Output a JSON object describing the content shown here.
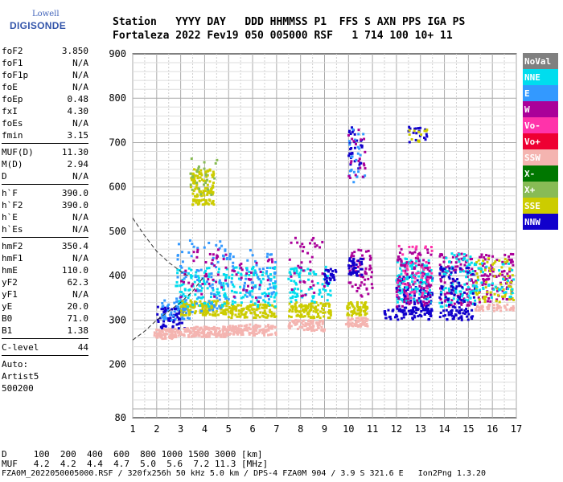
{
  "logo": {
    "line1": "Lowell",
    "line2": "DIGISONDE"
  },
  "header": {
    "line1": "Station   YYYY DAY   DDD HHMMSS P1  FFS S AXN PPS IGA PS",
    "line2": "Fortaleza 2022 Fev19 050 005000 RSF   1 714 100 10+ 11"
  },
  "params": [
    [
      {
        "k": "foF2",
        "v": "3.850"
      },
      {
        "k": "foF1",
        "v": "N/A"
      },
      {
        "k": "foF1p",
        "v": "N/A"
      },
      {
        "k": "foE",
        "v": "N/A"
      },
      {
        "k": "foEp",
        "v": "0.48"
      },
      {
        "k": "fxI",
        "v": "4.30"
      },
      {
        "k": "foEs",
        "v": "N/A"
      },
      {
        "k": "fmin",
        "v": "3.15"
      }
    ],
    [
      {
        "k": "MUF(D)",
        "v": "11.30"
      },
      {
        "k": "M(D)",
        "v": "2.94"
      },
      {
        "k": "D",
        "v": "N/A"
      }
    ],
    [
      {
        "k": "h`F",
        "v": "390.0"
      },
      {
        "k": "h`F2",
        "v": "390.0"
      },
      {
        "k": "h`E",
        "v": "N/A"
      },
      {
        "k": "h`Es",
        "v": "N/A"
      }
    ],
    [
      {
        "k": "hmF2",
        "v": "350.4"
      },
      {
        "k": "hmF1",
        "v": "N/A"
      },
      {
        "k": "hmE",
        "v": "110.0"
      },
      {
        "k": "yF2",
        "v": "62.3"
      },
      {
        "k": "yF1",
        "v": "N/A"
      },
      {
        "k": "yE",
        "v": "20.0"
      },
      {
        "k": "B0",
        "v": "71.0"
      },
      {
        "k": "B1",
        "v": "1.38"
      }
    ],
    [
      {
        "k": "C-level",
        "v": "44"
      }
    ]
  ],
  "auto": {
    "line1": "Auto:",
    "line2": "Artist5",
    "line3": "500200"
  },
  "bottom": {
    "d_line": "D     100  200  400  600  800 1000 1500 3000 [km]",
    "muf_line": "MUF   4.2  4.2  4.4  4.7  5.0  5.6  7.2 11.3 [MHz]"
  },
  "footer": "FZA0M_2022050005000.RSF / 320fx256h 50 kHz 5.0 km / DPS-4 FZA0M 904 / 3.9 S 321.6 E   Ion2Png 1.3.20",
  "legend": [
    {
      "label": "NoVal",
      "color": "#808080"
    },
    {
      "label": "NNE",
      "color": "#00ddee"
    },
    {
      "label": "E",
      "color": "#3399ff"
    },
    {
      "label": "W",
      "color": "#aa0099"
    },
    {
      "label": "Vo-",
      "color": "#ff33aa"
    },
    {
      "label": "Vo+",
      "color": "#ee0033"
    },
    {
      "label": "SSW",
      "color": "#f4b4b0"
    },
    {
      "label": "X-",
      "color": "#007700"
    },
    {
      "label": "X+",
      "color": "#88bb55"
    },
    {
      "label": "SSE",
      "color": "#cccc00"
    },
    {
      "label": "NNW",
      "color": "#1100cc"
    }
  ],
  "chart_data": {
    "type": "scatter",
    "title": "",
    "xlabel": "",
    "ylabel": "",
    "xlim": [
      1,
      17
    ],
    "ylim": [
      80,
      900
    ],
    "xticks": [
      1,
      2,
      3,
      4,
      5,
      6,
      7,
      8,
      9,
      10,
      11,
      12,
      13,
      14,
      15,
      16,
      17
    ],
    "yticks": [
      80,
      200,
      300,
      400,
      500,
      600,
      700,
      800,
      900
    ],
    "grid": true,
    "legend_position": "right",
    "trace_curve": [
      [
        1.0,
        530
      ],
      [
        1.5,
        490
      ],
      [
        2.0,
        455
      ],
      [
        2.5,
        430
      ],
      [
        3.0,
        410
      ],
      [
        3.3,
        400
      ]
    ],
    "lower_curve": [
      [
        1.0,
        255
      ],
      [
        1.5,
        275
      ],
      [
        2.0,
        300
      ],
      [
        2.5,
        320
      ],
      [
        3.0,
        340
      ],
      [
        3.5,
        365
      ],
      [
        4.0,
        400
      ]
    ],
    "clusters": [
      {
        "x": [
          1.9,
          3.0
        ],
        "y": [
          258,
          280
        ],
        "series": "SSW",
        "n": 90
      },
      {
        "x": [
          2.0,
          3.2
        ],
        "y": [
          280,
          330
        ],
        "series": "NNW",
        "n": 60
      },
      {
        "x": [
          2.2,
          3.5
        ],
        "y": [
          300,
          345
        ],
        "series": "E",
        "n": 50
      },
      {
        "x": [
          3.0,
          5.0
        ],
        "y": [
          262,
          285
        ],
        "series": "SSW",
        "n": 160
      },
      {
        "x": [
          3.0,
          5.0
        ],
        "y": [
          310,
          345
        ],
        "series": "SSE",
        "n": 140
      },
      {
        "x": [
          2.8,
          5.0
        ],
        "y": [
          330,
          420
        ],
        "series": "NNE",
        "n": 110
      },
      {
        "x": [
          2.8,
          5.0
        ],
        "y": [
          320,
          480
        ],
        "series": "E",
        "n": 90
      },
      {
        "x": [
          3.0,
          4.9
        ],
        "y": [
          350,
          470
        ],
        "series": "W",
        "n": 40
      },
      {
        "x": [
          3.4,
          4.4
        ],
        "y": [
          560,
          640
        ],
        "series": "SSE",
        "n": 130
      },
      {
        "x": [
          3.4,
          4.6
        ],
        "y": [
          580,
          665
        ],
        "series": "X+",
        "n": 25
      },
      {
        "x": [
          5.0,
          7.0
        ],
        "y": [
          265,
          290
        ],
        "series": "SSW",
        "n": 120
      },
      {
        "x": [
          5.0,
          7.0
        ],
        "y": [
          305,
          335
        ],
        "series": "SSE",
        "n": 120
      },
      {
        "x": [
          5.0,
          7.0
        ],
        "y": [
          330,
          420
        ],
        "series": "NNE",
        "n": 90
      },
      {
        "x": [
          5.0,
          7.0
        ],
        "y": [
          340,
          460
        ],
        "series": "E",
        "n": 60
      },
      {
        "x": [
          5.1,
          6.9
        ],
        "y": [
          340,
          440
        ],
        "series": "W",
        "n": 30
      },
      {
        "x": [
          7.5,
          9.0
        ],
        "y": [
          275,
          300
        ],
        "series": "SSW",
        "n": 90
      },
      {
        "x": [
          7.5,
          9.3
        ],
        "y": [
          305,
          340
        ],
        "series": "SSE",
        "n": 110
      },
      {
        "x": [
          7.5,
          9.3
        ],
        "y": [
          340,
          420
        ],
        "series": "NNE",
        "n": 80
      },
      {
        "x": [
          7.5,
          9.0
        ],
        "y": [
          350,
          490
        ],
        "series": "W",
        "n": 40
      },
      {
        "x": [
          9.0,
          9.5
        ],
        "y": [
          380,
          415
        ],
        "series": "NNW",
        "n": 30
      },
      {
        "x": [
          9.9,
          10.8
        ],
        "y": [
          285,
          305
        ],
        "series": "SSW",
        "n": 60
      },
      {
        "x": [
          9.9,
          10.8
        ],
        "y": [
          310,
          340
        ],
        "series": "SSE",
        "n": 60
      },
      {
        "x": [
          10.0,
          11.0
        ],
        "y": [
          350,
          460
        ],
        "series": "W",
        "n": 60
      },
      {
        "x": [
          10.0,
          10.6
        ],
        "y": [
          400,
          440
        ],
        "series": "NNW",
        "n": 40
      },
      {
        "x": [
          10.0,
          10.7
        ],
        "y": [
          630,
          740
        ],
        "series": "NNW",
        "n": 30
      },
      {
        "x": [
          10.0,
          10.7
        ],
        "y": [
          610,
          730
        ],
        "series": "E",
        "n": 25
      },
      {
        "x": [
          10.0,
          10.7
        ],
        "y": [
          620,
          730
        ],
        "series": "W",
        "n": 20
      },
      {
        "x": [
          11.5,
          13.5
        ],
        "y": [
          300,
          330
        ],
        "series": "NNW",
        "n": 60
      },
      {
        "x": [
          12.0,
          13.5
        ],
        "y": [
          310,
          400
        ],
        "series": "NNW",
        "n": 130
      },
      {
        "x": [
          12.0,
          13.5
        ],
        "y": [
          340,
          440
        ],
        "series": "NNE",
        "n": 130
      },
      {
        "x": [
          12.0,
          13.5
        ],
        "y": [
          330,
          460
        ],
        "series": "W",
        "n": 100
      },
      {
        "x": [
          12.0,
          13.5
        ],
        "y": [
          350,
          470
        ],
        "series": "Vo-",
        "n": 50
      },
      {
        "x": [
          12.5,
          13.3
        ],
        "y": [
          700,
          735
        ],
        "series": "NNW",
        "n": 20
      },
      {
        "x": [
          12.5,
          13.3
        ],
        "y": [
          700,
          735
        ],
        "series": "SSE",
        "n": 12
      },
      {
        "x": [
          13.8,
          15.2
        ],
        "y": [
          300,
          330
        ],
        "series": "NNW",
        "n": 50
      },
      {
        "x": [
          13.8,
          15.3
        ],
        "y": [
          330,
          450
        ],
        "series": "W",
        "n": 110
      },
      {
        "x": [
          13.8,
          15.3
        ],
        "y": [
          330,
          450
        ],
        "series": "NNE",
        "n": 90
      },
      {
        "x": [
          13.8,
          15.3
        ],
        "y": [
          330,
          420
        ],
        "series": "NNW",
        "n": 60
      },
      {
        "x": [
          15.3,
          16.9
        ],
        "y": [
          320,
          335
        ],
        "series": "SSW",
        "n": 50
      },
      {
        "x": [
          15.3,
          16.9
        ],
        "y": [
          340,
          450
        ],
        "series": "W",
        "n": 100
      },
      {
        "x": [
          15.3,
          16.9
        ],
        "y": [
          340,
          440
        ],
        "series": "SSE",
        "n": 70
      },
      {
        "x": [
          15.3,
          16.9
        ],
        "y": [
          350,
          430
        ],
        "series": "NNE",
        "n": 40
      }
    ]
  }
}
